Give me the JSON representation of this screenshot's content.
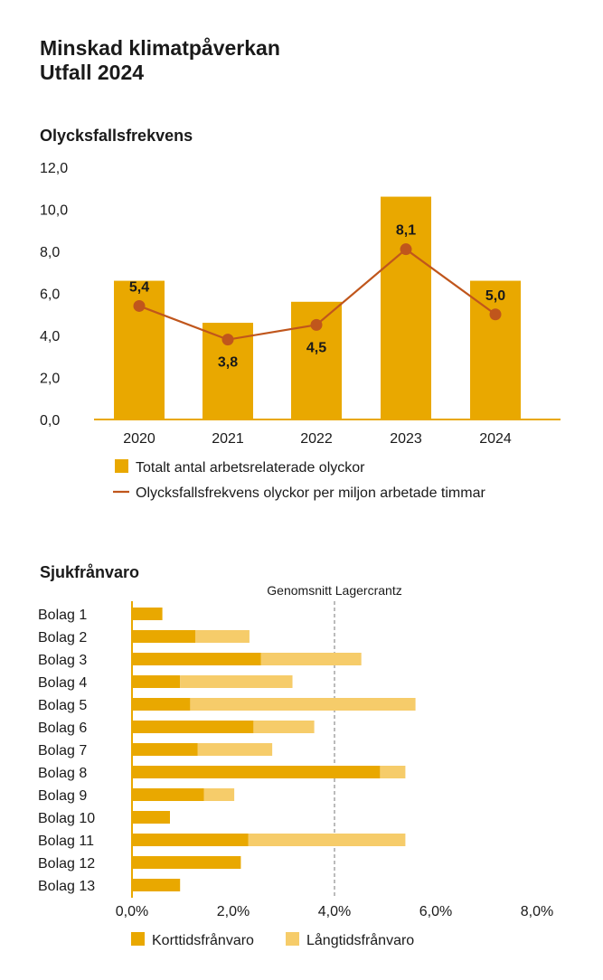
{
  "page": {
    "title_line1": "Minskad klimatpåverkan",
    "title_line2": "Utfall 2024"
  },
  "colors": {
    "bar": "#E9A800",
    "bar_light": "#F6CC6A",
    "line": "#C0561C",
    "axis": "#E9A800",
    "text": "#1a1a1a",
    "dash": "#777777"
  },
  "chart_data": [
    {
      "type": "bar",
      "title": "Olycksfallsfrekvens",
      "categories": [
        "2020",
        "2021",
        "2022",
        "2023",
        "2024"
      ],
      "ylim": [
        0,
        12
      ],
      "yticks": [
        "0,0",
        "2,0",
        "4,0",
        "6,0",
        "8,0",
        "10,0",
        "12,0"
      ],
      "grid": false,
      "legend_position": "bottom",
      "series": [
        {
          "name": "Totalt antal arbetsrelaterade olyckor",
          "type": "bar",
          "values": [
            6.6,
            4.6,
            5.6,
            10.6,
            6.6
          ]
        },
        {
          "name": "Olycksfallsfrekvens olyckor per miljon arbetade timmar",
          "type": "line",
          "values": [
            5.4,
            3.8,
            4.5,
            8.1,
            5.0
          ],
          "labels": [
            "5,4",
            "3,8",
            "4,5",
            "8,1",
            "5,0"
          ]
        }
      ]
    },
    {
      "type": "bar",
      "orientation": "horizontal",
      "stacked": true,
      "title": "Sjukfrånvaro",
      "categories": [
        "Bolag 1",
        "Bolag 2",
        "Bolag 3",
        "Bolag 4",
        "Bolag 5",
        "Bolag 6",
        "Bolag 7",
        "Bolag 8",
        "Bolag 9",
        "Bolag 10",
        "Bolag 11",
        "Bolag 12",
        "Bolag 13"
      ],
      "xlim": [
        0,
        8
      ],
      "xticks": [
        "0,0%",
        "2,0%",
        "4,0%",
        "6,0%",
        "8,0%"
      ],
      "grid": false,
      "legend_position": "bottom",
      "reference_line": {
        "label": "Genomsnitt Lagercrantz",
        "value": 4.0
      },
      "series": [
        {
          "name": "Korttidsfrånvaro",
          "values": [
            0.6,
            1.25,
            2.55,
            0.95,
            1.15,
            2.4,
            1.3,
            4.9,
            1.42,
            0.75,
            2.3,
            2.15,
            0.95
          ]
        },
        {
          "name": "Långtidsfrånvaro",
          "values": [
            0.0,
            1.07,
            1.98,
            2.22,
            4.45,
            1.2,
            1.47,
            0.5,
            0.6,
            0.0,
            3.1,
            0.0,
            0.0
          ]
        }
      ]
    }
  ]
}
